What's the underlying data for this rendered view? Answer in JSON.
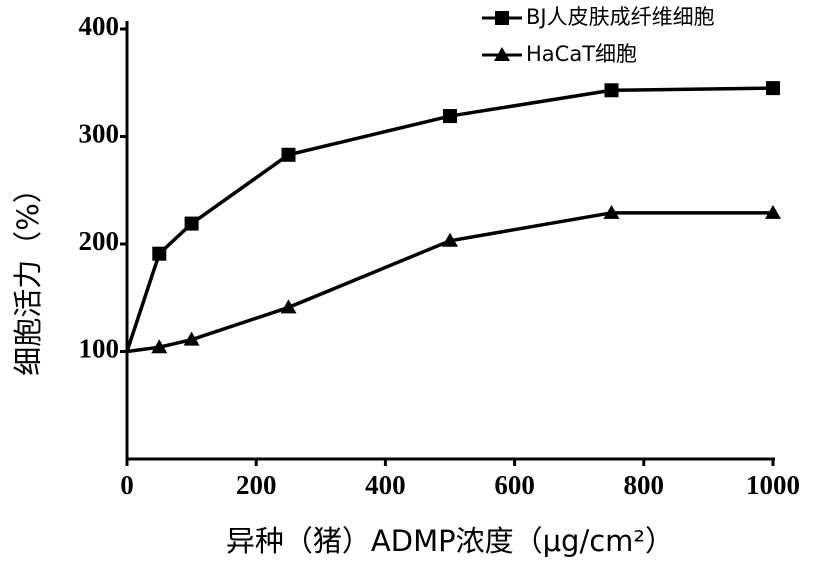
{
  "chart_data": {
    "type": "line",
    "xlabel": "异种（猪）ADMP浓度（μg/cm²）",
    "ylabel": "细胞活力（%）",
    "x": [
      0,
      50,
      100,
      250,
      500,
      750,
      1000
    ],
    "series": [
      {
        "name": "BJ人皮肤成纤维细胞",
        "color": "#000000",
        "marker": "square",
        "values": [
          100,
          191,
          219,
          283,
          319,
          343,
          345
        ]
      },
      {
        "name": "HaCaT细胞",
        "color": "#000000",
        "marker": "triangle",
        "values": [
          100,
          104,
          111,
          141,
          203,
          229,
          229
        ]
      }
    ],
    "xlim": [
      0,
      1000
    ],
    "xticks": [
      0,
      200,
      400,
      600,
      800,
      1000
    ],
    "ylim": [
      0,
      400
    ],
    "yticks": [
      100,
      200,
      300,
      400
    ],
    "legend": "upper right"
  }
}
